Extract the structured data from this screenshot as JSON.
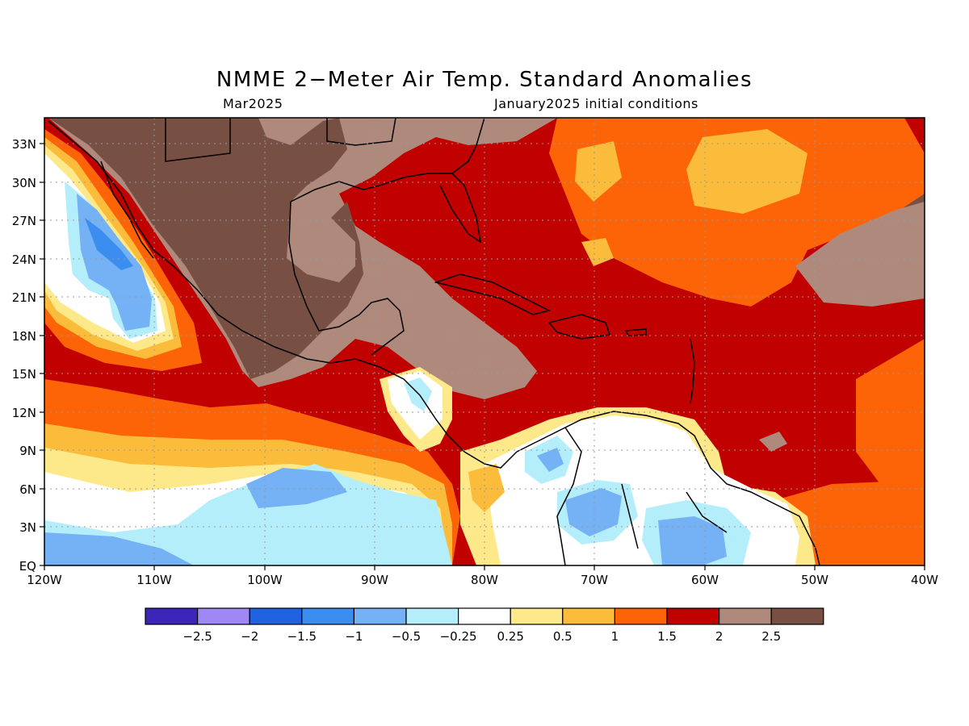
{
  "title": "NMME 2−Meter Air Temp. Standard Anomalies",
  "subtitle_left": "Mar2025",
  "subtitle_right": "January2025 initial conditions",
  "lat_labels": [
    "33N",
    "30N",
    "27N",
    "24N",
    "21N",
    "18N",
    "15N",
    "12N",
    "9N",
    "6N",
    "3N",
    "EQ"
  ],
  "lon_labels": [
    "120W",
    "110W",
    "100W",
    "90W",
    "80W",
    "70W",
    "60W",
    "50W",
    "40W"
  ],
  "colorbar": {
    "colors": [
      "#3b24b8",
      "#9f87f5",
      "#1f63e0",
      "#3b8ef0",
      "#74b1f5",
      "#b4eefa",
      "#ffffff",
      "#fde98a",
      "#fcbc3b",
      "#fc6407",
      "#c10000",
      "#b0897d",
      "#774f43"
    ],
    "labels": [
      "−2.5",
      "−2",
      "−1.5",
      "−1",
      "−0.5",
      "−0.25",
      "0.25",
      "0.5",
      "1",
      "1.5",
      "2",
      "2.5"
    ]
  }
}
